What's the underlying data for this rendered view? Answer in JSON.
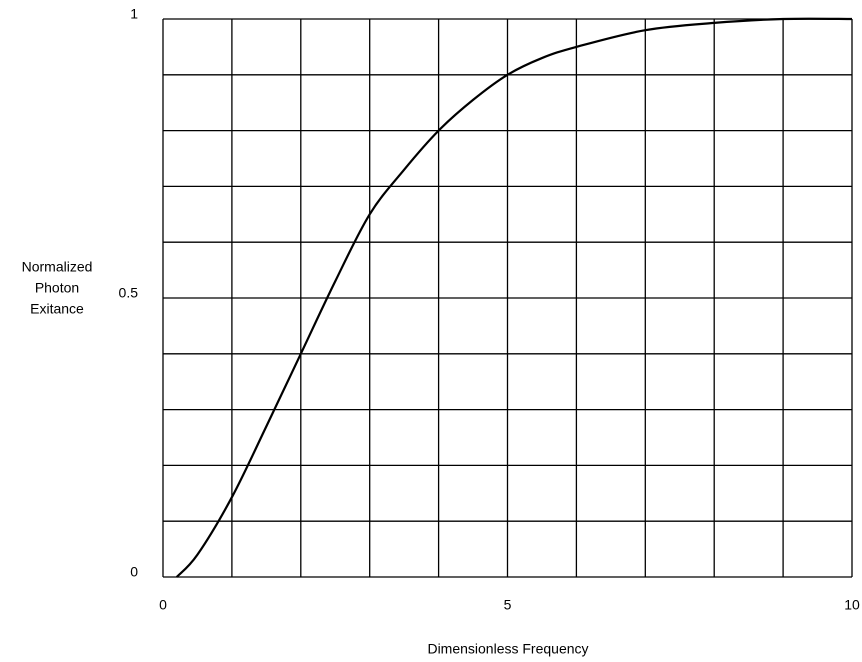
{
  "chart_data": {
    "type": "line",
    "xlabel": "Dimensionless Frequency",
    "ylabel": [
      "Normalized",
      "Photon",
      "Exitance"
    ],
    "xlim": [
      0,
      10
    ],
    "ylim": [
      0,
      1
    ],
    "xticks": [
      0,
      5,
      10
    ],
    "yticks": [
      0,
      0.5,
      1
    ],
    "xgrid": [
      0,
      1,
      2,
      3,
      4,
      5,
      6,
      7,
      8,
      9,
      10
    ],
    "ygrid": [
      0,
      0.1,
      0.2,
      0.3,
      0.4,
      0.5,
      0.6,
      0.7,
      0.8,
      0.9,
      1
    ],
    "grid": true,
    "series": [
      {
        "color": "#000000",
        "x": [
          0.2,
          0.5,
          1,
          1.5,
          2,
          2.5,
          3,
          3.5,
          4,
          4.5,
          5,
          5.5,
          6,
          7,
          8,
          9,
          10
        ],
        "values": [
          0,
          0.04,
          0.143,
          0.27,
          0.4,
          0.53,
          0.65,
          0.73,
          0.8,
          0.855,
          0.9,
          0.93,
          0.95,
          0.98,
          0.993,
          1,
          1
        ]
      }
    ]
  }
}
